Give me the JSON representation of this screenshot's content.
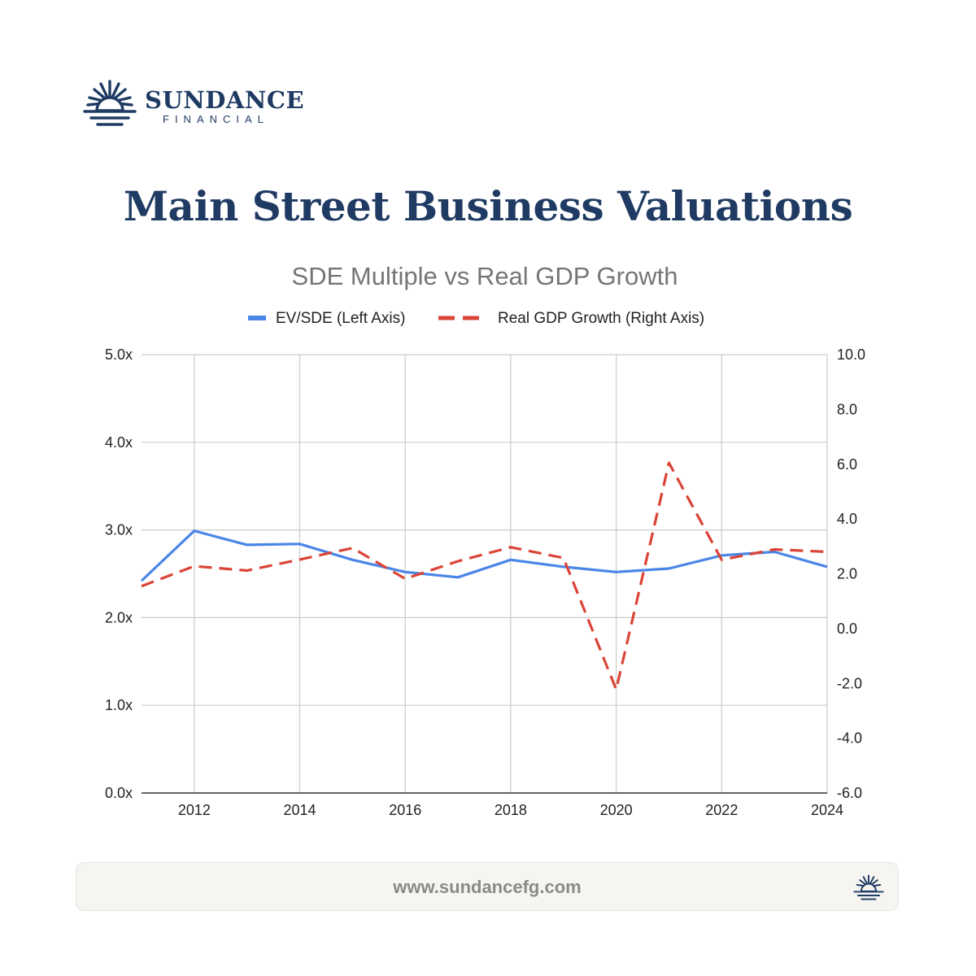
{
  "brand": {
    "name": "SUNDANCE",
    "sub": "FINANCIAL",
    "color": "#1f3b63"
  },
  "page_title": "Main Street Business Valuations",
  "footer": {
    "url": "www.sundancefg.com"
  },
  "chart_data": {
    "type": "line",
    "title": "SDE Multiple vs Real GDP Growth",
    "x": [
      2011,
      2012,
      2013,
      2014,
      2015,
      2016,
      2017,
      2018,
      2019,
      2020,
      2021,
      2022,
      2023,
      2024
    ],
    "xlim": [
      2011,
      2024
    ],
    "x_ticks": [
      "2012",
      "2014",
      "2016",
      "2018",
      "2020",
      "2022",
      "2024"
    ],
    "x_tick_values": [
      2012,
      2014,
      2016,
      2018,
      2020,
      2022,
      2024
    ],
    "y_left": {
      "lim": [
        0,
        5
      ],
      "ticks": [
        "0.0x",
        "1.0x",
        "2.0x",
        "3.0x",
        "4.0x",
        "5.0x"
      ],
      "tick_values": [
        0,
        1,
        2,
        3,
        4,
        5
      ]
    },
    "y_right": {
      "lim": [
        -6,
        10
      ],
      "ticks": [
        "-6.0",
        "-4.0",
        "-2.0",
        "0.0",
        "2.0",
        "4.0",
        "6.0",
        "8.0",
        "10.0"
      ],
      "tick_values": [
        -6,
        -4,
        -2,
        0,
        2,
        4,
        6,
        8,
        10
      ]
    },
    "grid": true,
    "legend_position": "top",
    "series": [
      {
        "name": "EV/SDE (Left Axis)",
        "axis": "left",
        "color": "#4a86e8",
        "style": "solid",
        "values": [
          2.42,
          2.99,
          2.83,
          2.84,
          2.66,
          2.52,
          2.46,
          2.66,
          2.58,
          2.52,
          2.56,
          2.71,
          2.75,
          2.58
        ]
      },
      {
        "name": "Real GDP Growth (Right Axis)",
        "axis": "right",
        "color": "#db4437",
        "style": "dashed",
        "values": [
          1.55,
          2.28,
          2.12,
          2.52,
          2.94,
          1.82,
          2.46,
          2.97,
          2.58,
          -2.22,
          6.05,
          2.51,
          2.89,
          2.8
        ]
      }
    ]
  }
}
